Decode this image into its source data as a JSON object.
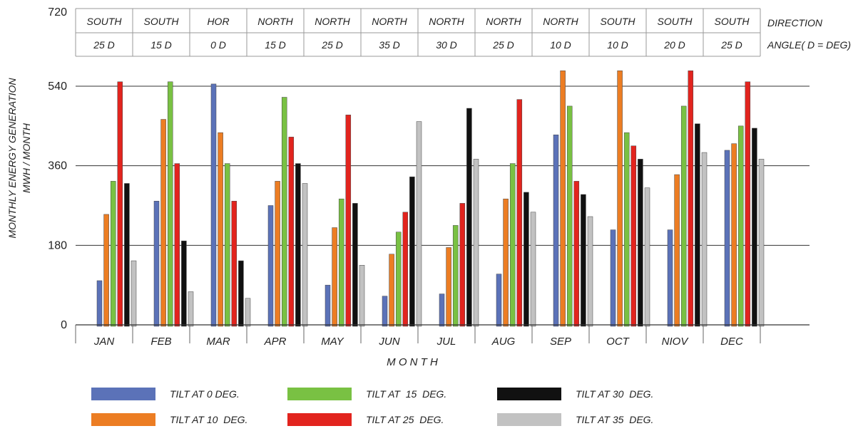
{
  "chart_data": {
    "type": "bar",
    "ylabel_line1": "MONTHLY ENERGY GENERATION",
    "ylabel_line2": "MWH / MONTH",
    "xlabel": "M O N T H",
    "ylim": [
      0,
      720
    ],
    "yticks": [
      0,
      180,
      360,
      540,
      720
    ],
    "grid": true,
    "categories": [
      "JAN",
      "FEB",
      "MAR",
      "APR",
      "MAY",
      "JUN",
      "JUL",
      "AUG",
      "SEP",
      "OCT",
      "NIOV",
      "DEC"
    ],
    "table": {
      "direction_label": "DIRECTION",
      "angle_label": "ANGLE( D = DEG)",
      "directions": [
        "SOUTH",
        "SOUTH",
        "HOR",
        "NORTH",
        "NORTH",
        "NORTH",
        "NORTH",
        "NORTH",
        "NORTH",
        "SOUTH",
        "SOUTH",
        "SOUTH"
      ],
      "angles": [
        "25 D",
        "15 D",
        "0 D",
        "15 D",
        "25 D",
        "35 D",
        "30 D",
        "25 D",
        "10 D",
        "10 D",
        "20 D",
        "25 D"
      ]
    },
    "series": [
      {
        "name": "TILT AT 0 DEG.",
        "color": "#5b72b8",
        "values": [
          100,
          280,
          545,
          270,
          90,
          65,
          70,
          115,
          430,
          215,
          215,
          395
        ]
      },
      {
        "name": "TILT AT 10  DEG.",
        "color": "#ec7d23",
        "values": [
          250,
          465,
          435,
          325,
          220,
          160,
          175,
          285,
          575,
          575,
          340,
          410
        ]
      },
      {
        "name": "TILT AT  15  DEG.",
        "color": "#79c143",
        "values": [
          325,
          550,
          365,
          515,
          285,
          210,
          225,
          365,
          495,
          435,
          495,
          450
        ]
      },
      {
        "name": "TILT AT 25  DEG.",
        "color": "#e2241e",
        "values": [
          550,
          365,
          280,
          425,
          475,
          255,
          275,
          510,
          325,
          405,
          575,
          550
        ]
      },
      {
        "name": "TILT AT 30  DEG.",
        "color": "#111111",
        "values": [
          320,
          190,
          145,
          365,
          275,
          335,
          490,
          300,
          295,
          375,
          455,
          445
        ]
      },
      {
        "name": "TILT AT 35  DEG.",
        "color": "#c2c2c2",
        "values": [
          145,
          75,
          60,
          320,
          135,
          460,
          375,
          255,
          245,
          310,
          390,
          375
        ]
      }
    ]
  }
}
